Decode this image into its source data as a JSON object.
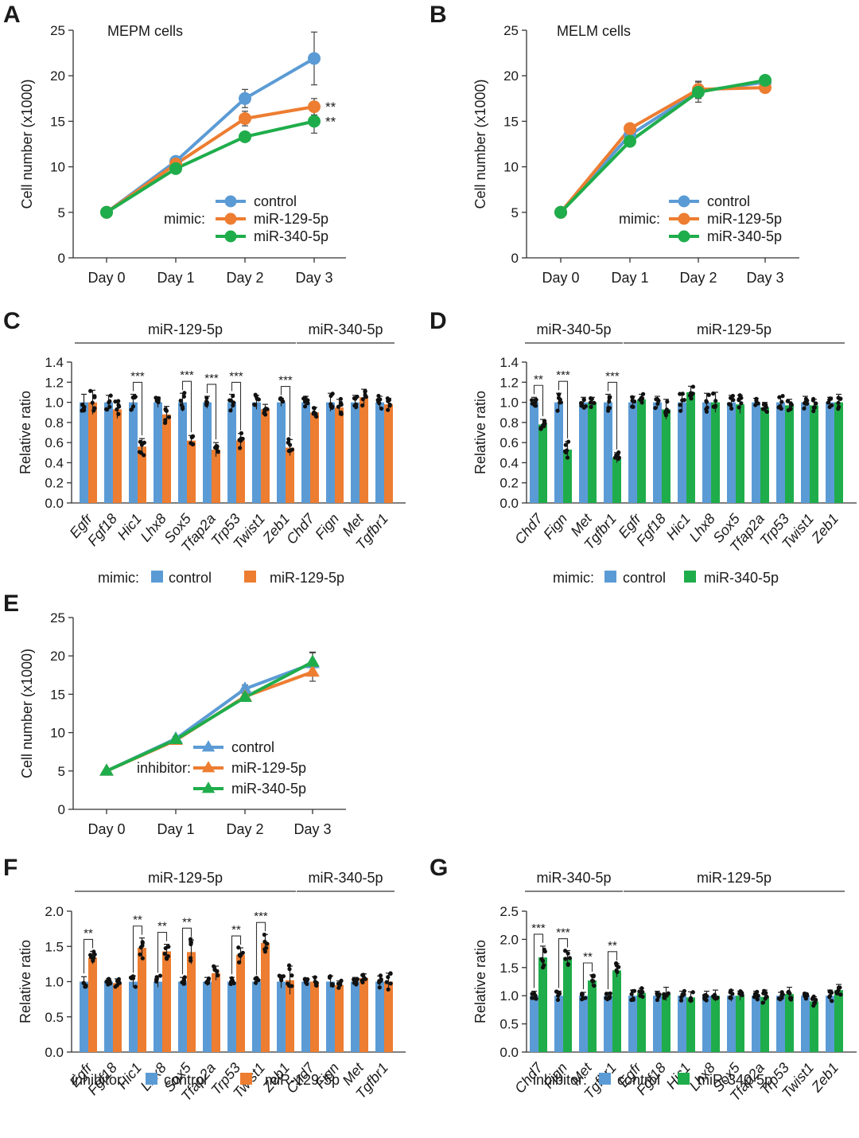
{
  "colors": {
    "control": "#5b9bd5",
    "mir129": "#ed7d31",
    "mir340": "#1fad4b",
    "axis": "#333333"
  },
  "chart_data": [
    {
      "id": "A",
      "panel_label": "A",
      "type": "line",
      "title": "MEPM cells",
      "categories": [
        "Day 0",
        "Day 1",
        "Day 2",
        "Day 3"
      ],
      "ylabel": "Cell number (x1000)",
      "ylim": [
        0,
        25
      ],
      "yticks": [
        0,
        5,
        10,
        15,
        20,
        25
      ],
      "marker": "circle",
      "legend_prefix": "mimic:",
      "series": [
        {
          "name": "control",
          "color": "#5b9bd5",
          "values": [
            5,
            10.6,
            17.5,
            21.9
          ],
          "errors": [
            0,
            0.3,
            1.0,
            2.9
          ]
        },
        {
          "name": "miR-129-5p",
          "color": "#ed7d31",
          "values": [
            5,
            10.3,
            15.3,
            16.6
          ],
          "errors": [
            0,
            0.3,
            0.8,
            0.9
          ]
        },
        {
          "name": "miR-340-5p",
          "color": "#1fad4b",
          "values": [
            5,
            9.8,
            13.3,
            15.0
          ],
          "errors": [
            0,
            0.3,
            0.5,
            1.3
          ]
        }
      ],
      "annotations": [
        {
          "series": 1,
          "x": 3,
          "text": "**"
        },
        {
          "series": 2,
          "x": 3,
          "text": "**"
        }
      ]
    },
    {
      "id": "B",
      "panel_label": "B",
      "type": "line",
      "title": "MELM cells",
      "categories": [
        "Day 0",
        "Day 1",
        "Day 2",
        "Day 3"
      ],
      "ylabel": "Cell number (x1000)",
      "ylim": [
        0,
        25
      ],
      "yticks": [
        0,
        5,
        10,
        15,
        20,
        25
      ],
      "marker": "circle",
      "legend_prefix": "mimic:",
      "series": [
        {
          "name": "control",
          "color": "#5b9bd5",
          "values": [
            5,
            13.5,
            18.3,
            19.3
          ],
          "errors": [
            0,
            0.4,
            0.8,
            0.4
          ]
        },
        {
          "name": "miR-129-5p",
          "color": "#ed7d31",
          "values": [
            5,
            14.2,
            18.5,
            18.7
          ],
          "errors": [
            0,
            0.5,
            0.9,
            0.4
          ]
        },
        {
          "name": "miR-340-5p",
          "color": "#1fad4b",
          "values": [
            5,
            12.8,
            18.2,
            19.5
          ],
          "errors": [
            0,
            0.4,
            1.1,
            0.4
          ]
        }
      ],
      "annotations": []
    },
    {
      "id": "C",
      "panel_label": "C",
      "type": "bar",
      "ylabel": "Relative ratio",
      "ylim": [
        0,
        1.4
      ],
      "yticks": [
        0.0,
        0.2,
        0.4,
        0.6,
        0.8,
        1.0,
        1.2,
        1.4
      ],
      "categories": [
        "Egfr",
        "Fgf18",
        "Hic1",
        "Lhx8",
        "Sox5",
        "Tfap2a",
        "Trp53",
        "Twist1",
        "Zeb1",
        "Chd7",
        "Fign",
        "Met",
        "Tgfbr1"
      ],
      "groups": [
        {
          "label": "miR-129-5p",
          "from": 0,
          "to": 8
        },
        {
          "label": "miR-340-5p",
          "from": 9,
          "to": 12
        }
      ],
      "series": [
        {
          "name": "control",
          "color": "#5b9bd5",
          "values": [
            1.0,
            1.0,
            1.0,
            1.0,
            1.0,
            1.0,
            1.0,
            1.0,
            1.0,
            1.0,
            1.0,
            1.0,
            1.0
          ],
          "errors": [
            0.08,
            0.07,
            0.08,
            0.05,
            0.09,
            0.06,
            0.08,
            0.07,
            0.04,
            0.06,
            0.09,
            0.07,
            0.06
          ]
        },
        {
          "name": "miR-129-5p",
          "color": "#ed7d31",
          "values": [
            1.0,
            0.93,
            0.56,
            0.88,
            0.62,
            0.53,
            0.62,
            0.93,
            0.55,
            0.9,
            0.95,
            1.05,
            0.98
          ],
          "errors": [
            0.12,
            0.09,
            0.08,
            0.08,
            0.05,
            0.07,
            0.07,
            0.05,
            0.08,
            0.05,
            0.08,
            0.08,
            0.06
          ]
        }
      ],
      "significance": [
        {
          "index": 2,
          "text": "***"
        },
        {
          "index": 4,
          "text": "***"
        },
        {
          "index": 5,
          "text": "***"
        },
        {
          "index": 6,
          "text": "***"
        },
        {
          "index": 8,
          "text": "***"
        }
      ],
      "legend_prefix": "mimic:",
      "legend": [
        "control",
        "miR-129-5p"
      ]
    },
    {
      "id": "D",
      "panel_label": "D",
      "type": "bar",
      "ylabel": "Relative ratio",
      "ylim": [
        0,
        1.4
      ],
      "yticks": [
        0.0,
        0.2,
        0.4,
        0.6,
        0.8,
        1.0,
        1.2,
        1.4
      ],
      "categories": [
        "Chd7",
        "Fign",
        "Met",
        "Tgfbr1",
        "Egfr",
        "Fgf18",
        "Hic1",
        "Lhx8",
        "Sox5",
        "Tfap2a",
        "Trp53",
        "Twist1",
        "Zeb1"
      ],
      "groups": [
        {
          "label": "miR-340-5p",
          "from": 0,
          "to": 3
        },
        {
          "label": "miR-129-5p",
          "from": 4,
          "to": 12
        }
      ],
      "series": [
        {
          "name": "control",
          "color": "#5b9bd5",
          "values": [
            1.0,
            1.0,
            1.0,
            1.0,
            1.0,
            1.0,
            1.0,
            1.0,
            1.0,
            1.0,
            1.0,
            1.0,
            1.0
          ],
          "errors": [
            0.05,
            0.09,
            0.05,
            0.08,
            0.06,
            0.06,
            0.08,
            0.09,
            0.07,
            0.04,
            0.06,
            0.06,
            0.05
          ]
        },
        {
          "name": "miR-340-5p",
          "color": "#1fad4b",
          "values": [
            0.78,
            0.53,
            1.0,
            0.45,
            1.03,
            0.93,
            1.1,
            1.0,
            0.98,
            0.95,
            0.97,
            0.97,
            1.0
          ],
          "errors": [
            0.05,
            0.08,
            0.05,
            0.05,
            0.05,
            0.1,
            0.06,
            0.1,
            0.09,
            0.05,
            0.06,
            0.06,
            0.08
          ]
        }
      ],
      "significance": [
        {
          "index": 0,
          "text": "**"
        },
        {
          "index": 1,
          "text": "***"
        },
        {
          "index": 3,
          "text": "***"
        }
      ],
      "legend_prefix": "mimic:",
      "legend": [
        "control",
        "miR-340-5p"
      ]
    },
    {
      "id": "E",
      "panel_label": "E",
      "type": "line",
      "title": "",
      "categories": [
        "Day 0",
        "Day 1",
        "Day 2",
        "Day 3"
      ],
      "ylabel": "Cell number (x1000)",
      "ylim": [
        0,
        25
      ],
      "yticks": [
        0,
        5,
        10,
        15,
        20,
        25
      ],
      "marker": "triangle",
      "legend_prefix": "inhibitor:",
      "series": [
        {
          "name": "control",
          "color": "#5b9bd5",
          "values": [
            5,
            9.2,
            15.7,
            19.0
          ],
          "errors": [
            0,
            0.3,
            0.5,
            1.5
          ]
        },
        {
          "name": "miR-129-5p",
          "color": "#ed7d31",
          "values": [
            5,
            9.0,
            14.7,
            17.9
          ],
          "errors": [
            0,
            0.3,
            0.5,
            1.2
          ]
        },
        {
          "name": "miR-340-5p",
          "color": "#1fad4b",
          "values": [
            5,
            9.1,
            14.6,
            19.2
          ],
          "errors": [
            0,
            0.3,
            0.5,
            1.2
          ]
        }
      ],
      "annotations": []
    },
    {
      "id": "F",
      "panel_label": "F",
      "type": "bar",
      "ylabel": "Relative ratio",
      "ylim": [
        0,
        2.0
      ],
      "yticks": [
        0.0,
        0.5,
        1.0,
        1.5,
        2.0
      ],
      "categories": [
        "Egfr",
        "Fgf18",
        "Hic1",
        "Lhx8",
        "Sox5",
        "Tfap2a",
        "Trp53",
        "Twist1",
        "Zeb1",
        "Chd7",
        "Fign",
        "Met",
        "Tgfbr1"
      ],
      "groups": [
        {
          "label": "miR-129-5p",
          "from": 0,
          "to": 8
        },
        {
          "label": "miR-340-5p",
          "from": 9,
          "to": 12
        }
      ],
      "series": [
        {
          "name": "control",
          "color": "#5b9bd5",
          "values": [
            1.0,
            1.0,
            1.0,
            1.0,
            1.0,
            1.0,
            1.0,
            1.0,
            1.0,
            1.0,
            1.0,
            1.0,
            1.0
          ],
          "errors": [
            0.07,
            0.04,
            0.08,
            0.08,
            0.06,
            0.06,
            0.06,
            0.05,
            0.09,
            0.05,
            0.08,
            0.06,
            0.08
          ]
        },
        {
          "name": "miR-129-5p",
          "color": "#ed7d31",
          "values": [
            1.34,
            0.98,
            1.48,
            1.43,
            1.42,
            1.12,
            1.38,
            1.55,
            1.02,
            1.0,
            0.95,
            1.05,
            1.0
          ],
          "errors": [
            0.09,
            0.06,
            0.14,
            0.1,
            0.17,
            0.1,
            0.1,
            0.12,
            0.2,
            0.07,
            0.06,
            0.06,
            0.12
          ]
        }
      ],
      "significance": [
        {
          "index": 0,
          "text": "**"
        },
        {
          "index": 2,
          "text": "**"
        },
        {
          "index": 3,
          "text": "**"
        },
        {
          "index": 4,
          "text": "**"
        },
        {
          "index": 6,
          "text": "**"
        },
        {
          "index": 7,
          "text": "***"
        }
      ],
      "legend_prefix": "inhibitor:",
      "legend": [
        "control",
        "miR-129-5p"
      ]
    },
    {
      "id": "G",
      "panel_label": "G",
      "type": "bar",
      "ylabel": "Relative ratio",
      "ylim": [
        0,
        2.5
      ],
      "yticks": [
        0.0,
        0.5,
        1.0,
        1.5,
        2.0,
        2.5
      ],
      "categories": [
        "Chd7",
        "Fign",
        "Met",
        "Tgfbr1",
        "Egfr",
        "Fgf18",
        "Hic1",
        "Lhx8",
        "Sox5",
        "Tfap2a",
        "Trp53",
        "Twist1",
        "Zeb1"
      ],
      "groups": [
        {
          "label": "miR-340-5p",
          "from": 0,
          "to": 3
        },
        {
          "label": "miR-129-5p",
          "from": 4,
          "to": 12
        }
      ],
      "series": [
        {
          "name": "control",
          "color": "#5b9bd5",
          "values": [
            1.0,
            1.0,
            1.0,
            1.0,
            1.0,
            1.0,
            1.0,
            1.0,
            1.0,
            1.0,
            1.0,
            1.0,
            1.0
          ],
          "errors": [
            0.08,
            0.08,
            0.06,
            0.06,
            0.1,
            0.08,
            0.08,
            0.08,
            0.1,
            0.08,
            0.06,
            0.05,
            0.1
          ]
        },
        {
          "name": "miR-340-5p",
          "color": "#1fad4b",
          "values": [
            1.68,
            1.68,
            1.27,
            1.45,
            1.05,
            1.03,
            0.97,
            1.0,
            1.0,
            0.98,
            1.03,
            0.9,
            1.1
          ],
          "errors": [
            0.2,
            0.12,
            0.1,
            0.12,
            0.08,
            0.12,
            0.1,
            0.1,
            0.08,
            0.12,
            0.12,
            0.08,
            0.1
          ]
        }
      ],
      "significance": [
        {
          "index": 0,
          "text": "***"
        },
        {
          "index": 1,
          "text": "***"
        },
        {
          "index": 2,
          "text": "**"
        },
        {
          "index": 3,
          "text": "**"
        }
      ],
      "legend_prefix": "inhibitor:",
      "legend": [
        "control",
        "miR-340-5p"
      ]
    }
  ]
}
